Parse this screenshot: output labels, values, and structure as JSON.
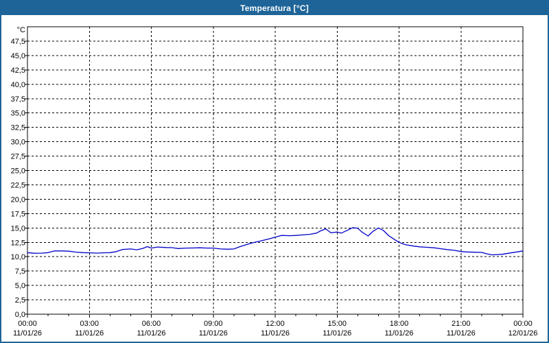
{
  "window": {
    "title": "Temperatura [°C]"
  },
  "colors": {
    "title_bar_bg": "#1e6498",
    "title_text": "#ffffff",
    "window_border": "#1e6498",
    "plot_bg": "#ffffff",
    "grid": "#000000",
    "axis": "#000000",
    "tick_text": "#000000",
    "line": "#0000c8"
  },
  "chart_data": {
    "type": "line",
    "title": "Temperatura [°C]",
    "unit_label": "°C",
    "ylim": [
      0,
      50
    ],
    "xlim_hours": [
      0,
      24
    ],
    "x_minor_step_hours": 1,
    "grid": "dashed",
    "legend": "none",
    "yticks": [
      {
        "value": 0.0,
        "label": "0,0"
      },
      {
        "value": 2.5,
        "label": "2,5"
      },
      {
        "value": 5.0,
        "label": "5,0"
      },
      {
        "value": 7.5,
        "label": "7,5"
      },
      {
        "value": 10.0,
        "label": "10,0"
      },
      {
        "value": 12.5,
        "label": "12,5"
      },
      {
        "value": 15.0,
        "label": "15,0"
      },
      {
        "value": 17.5,
        "label": "17,5"
      },
      {
        "value": 20.0,
        "label": "20,0"
      },
      {
        "value": 22.5,
        "label": "22,5"
      },
      {
        "value": 25.0,
        "label": "25,0"
      },
      {
        "value": 27.5,
        "label": "27,5"
      },
      {
        "value": 30.0,
        "label": "30,0"
      },
      {
        "value": 32.5,
        "label": "32,5"
      },
      {
        "value": 35.0,
        "label": "35,0"
      },
      {
        "value": 37.5,
        "label": "37,5"
      },
      {
        "value": 40.0,
        "label": "40,0"
      },
      {
        "value": 42.5,
        "label": "42,5"
      },
      {
        "value": 45.0,
        "label": "45,0"
      },
      {
        "value": 47.5,
        "label": "47,5"
      }
    ],
    "xticks": [
      {
        "hour": 0,
        "time": "00:00",
        "date": "11/01/26"
      },
      {
        "hour": 3,
        "time": "03:00",
        "date": "11/01/26"
      },
      {
        "hour": 6,
        "time": "06:00",
        "date": "11/01/26"
      },
      {
        "hour": 9,
        "time": "09:00",
        "date": "11/01/26"
      },
      {
        "hour": 12,
        "time": "12:00",
        "date": "11/01/26"
      },
      {
        "hour": 15,
        "time": "15:00",
        "date": "11/01/26"
      },
      {
        "hour": 18,
        "time": "18:00",
        "date": "11/01/26"
      },
      {
        "hour": 21,
        "time": "21:00",
        "date": "11/01/26"
      },
      {
        "hour": 24,
        "time": "00:00",
        "date": "12/01/26"
      }
    ],
    "series": [
      {
        "name": "Temperatura",
        "color": "#0000c8",
        "points": [
          [
            0.0,
            10.7
          ],
          [
            0.35,
            10.6
          ],
          [
            0.7,
            10.62
          ],
          [
            1.0,
            10.7
          ],
          [
            1.3,
            11.0
          ],
          [
            1.7,
            11.0
          ],
          [
            2.0,
            10.95
          ],
          [
            2.35,
            10.8
          ],
          [
            2.7,
            10.7
          ],
          [
            3.0,
            10.68
          ],
          [
            3.35,
            10.62
          ],
          [
            3.7,
            10.68
          ],
          [
            4.0,
            10.7
          ],
          [
            4.3,
            10.88
          ],
          [
            4.6,
            11.25
          ],
          [
            5.0,
            11.35
          ],
          [
            5.3,
            11.2
          ],
          [
            5.6,
            11.45
          ],
          [
            5.8,
            11.75
          ],
          [
            6.0,
            11.5
          ],
          [
            6.3,
            11.68
          ],
          [
            6.7,
            11.6
          ],
          [
            7.0,
            11.58
          ],
          [
            7.3,
            11.42
          ],
          [
            7.7,
            11.5
          ],
          [
            8.0,
            11.52
          ],
          [
            8.35,
            11.55
          ],
          [
            8.7,
            11.5
          ],
          [
            9.0,
            11.5
          ],
          [
            9.35,
            11.35
          ],
          [
            9.7,
            11.3
          ],
          [
            10.0,
            11.35
          ],
          [
            10.3,
            11.75
          ],
          [
            10.7,
            12.2
          ],
          [
            11.0,
            12.5
          ],
          [
            11.3,
            12.75
          ],
          [
            11.7,
            13.1
          ],
          [
            12.0,
            13.4
          ],
          [
            12.3,
            13.7
          ],
          [
            12.7,
            13.65
          ],
          [
            13.0,
            13.7
          ],
          [
            13.35,
            13.8
          ],
          [
            13.7,
            13.9
          ],
          [
            14.0,
            14.1
          ],
          [
            14.2,
            14.5
          ],
          [
            14.45,
            14.85
          ],
          [
            14.7,
            14.15
          ],
          [
            15.0,
            14.3
          ],
          [
            15.2,
            14.1
          ],
          [
            15.5,
            14.6
          ],
          [
            15.75,
            15.05
          ],
          [
            16.0,
            14.95
          ],
          [
            16.2,
            14.3
          ],
          [
            16.5,
            13.6
          ],
          [
            16.75,
            14.45
          ],
          [
            17.0,
            15.0
          ],
          [
            17.25,
            14.55
          ],
          [
            17.5,
            13.65
          ],
          [
            17.75,
            13.05
          ],
          [
            18.0,
            12.5
          ],
          [
            18.3,
            12.1
          ],
          [
            18.7,
            11.85
          ],
          [
            19.0,
            11.72
          ],
          [
            19.3,
            11.65
          ],
          [
            19.7,
            11.55
          ],
          [
            20.0,
            11.4
          ],
          [
            20.3,
            11.25
          ],
          [
            20.7,
            11.1
          ],
          [
            21.0,
            10.9
          ],
          [
            21.3,
            10.82
          ],
          [
            21.7,
            10.78
          ],
          [
            22.0,
            10.75
          ],
          [
            22.25,
            10.5
          ],
          [
            22.5,
            10.32
          ],
          [
            23.0,
            10.42
          ],
          [
            23.3,
            10.6
          ],
          [
            23.7,
            10.82
          ],
          [
            24.0,
            11.0
          ]
        ]
      }
    ]
  }
}
